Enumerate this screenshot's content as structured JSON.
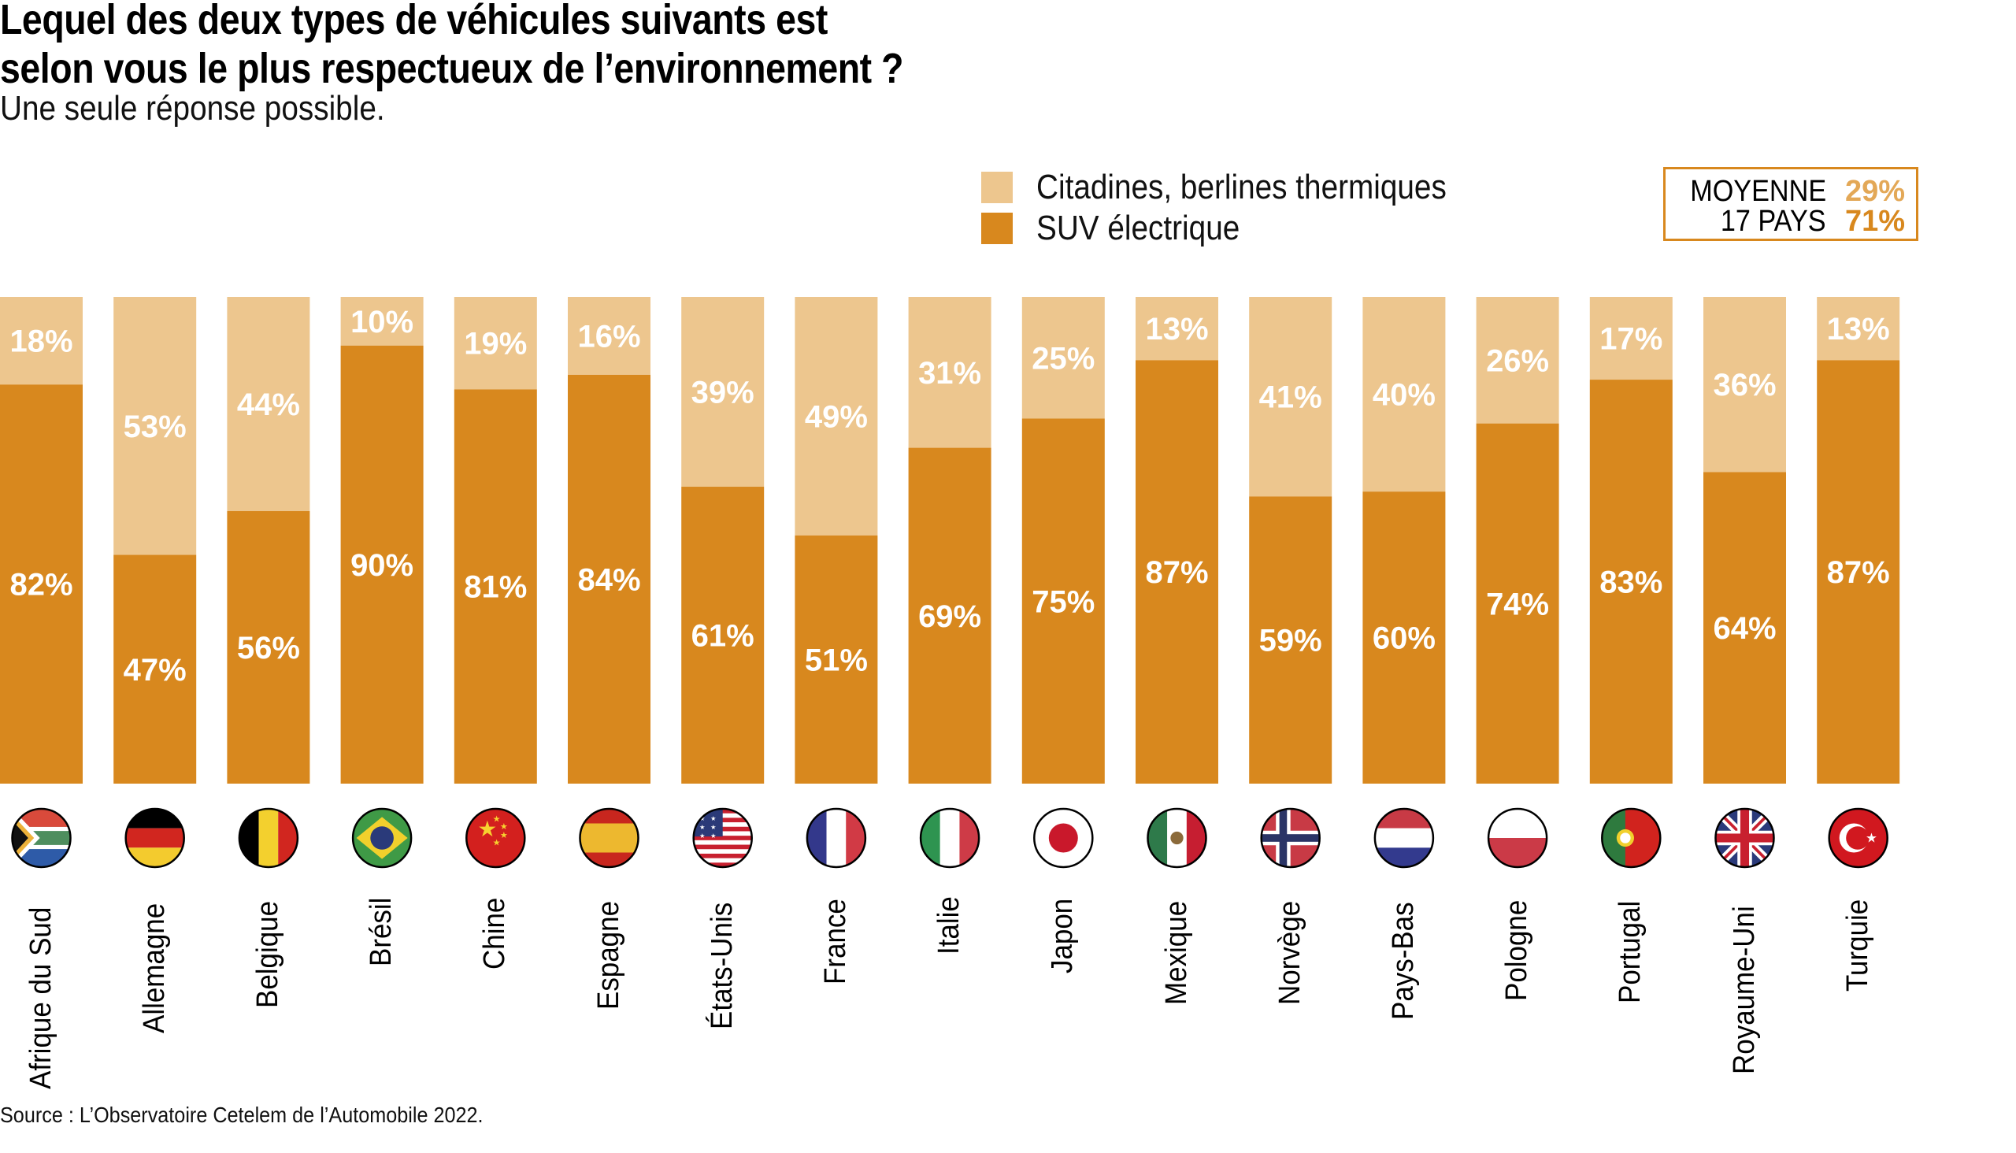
{
  "title_line1": "Lequel des deux types de véhicules suivants est",
  "title_line2": "selon vous le plus respectueux de l’environnement ?",
  "subtitle": "Une seule réponse possible.",
  "legend": [
    {
      "label": "Citadines, berlines thermiques",
      "color": "#EDC68E"
    },
    {
      "label": "SUV électrique",
      "color": "#D8881E"
    }
  ],
  "average_box": {
    "label_line1": "MOYENNE",
    "label_line2": "17 PAYS",
    "value_thermal": "29%",
    "value_suv": "71%",
    "color_thermal": "#E3A857",
    "color_suv": "#D8881E"
  },
  "source": "Source : L’Observatoire Cetelem de l’Automobile 2022.",
  "chart_data": {
    "type": "bar",
    "stacked": true,
    "orientation": "vertical",
    "title": "Lequel des deux types de véhicules suivants est selon vous le plus respectueux de l’environnement ?",
    "subtitle": "Une seule réponse possible.",
    "xlabel": "",
    "ylabel": "",
    "ylim": [
      0,
      100
    ],
    "unit": "%",
    "grid": false,
    "legend_position": "top-right",
    "categories": [
      "Afrique du Sud",
      "Allemagne",
      "Belgique",
      "Brésil",
      "Chine",
      "Espagne",
      "États-Unis",
      "France",
      "Italie",
      "Japon",
      "Mexique",
      "Norvège",
      "Pays-Bas",
      "Pologne",
      "Portugal",
      "Royaume-Uni",
      "Turquie"
    ],
    "flags": [
      "flag-south-africa",
      "flag-germany",
      "flag-belgium",
      "flag-brazil",
      "flag-china",
      "flag-spain",
      "flag-usa",
      "flag-france",
      "flag-italy",
      "flag-japan",
      "flag-mexico",
      "flag-norway",
      "flag-netherlands",
      "flag-poland",
      "flag-portugal",
      "flag-uk",
      "flag-turkey"
    ],
    "series": [
      {
        "name": "Citadines, berlines thermiques",
        "color": "#EDC68E",
        "position": "top",
        "values": [
          18,
          53,
          44,
          10,
          19,
          16,
          39,
          49,
          31,
          25,
          13,
          41,
          40,
          26,
          17,
          36,
          13
        ]
      },
      {
        "name": "SUV électrique",
        "color": "#D8881E",
        "position": "bottom",
        "values": [
          82,
          47,
          56,
          90,
          81,
          84,
          61,
          51,
          69,
          75,
          87,
          59,
          60,
          74,
          83,
          64,
          87
        ]
      }
    ],
    "average": {
      "label": "MOYENNE 17 PAYS",
      "Citadines, berlines thermiques": 29,
      "SUV électrique": 71
    }
  }
}
